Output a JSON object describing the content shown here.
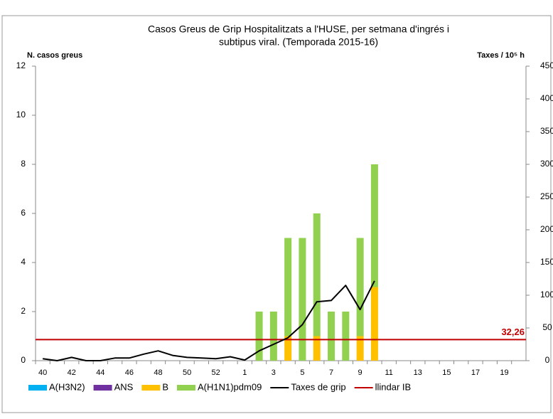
{
  "chart_data": {
    "type": "bar",
    "title": [
      "Casos  Greus de Grip Hospitalitzats a l'HUSE, per setmana  d'ingrés i",
      "subtipus viral. (Temporada 2015-16)"
    ],
    "y_label": "N. casos greus",
    "y2_label": "Taxes / 10⁵ h",
    "categories": [
      "40",
      null,
      "42",
      null,
      "44",
      null,
      "46",
      null,
      "48",
      null,
      "50",
      null,
      "52",
      null,
      "1",
      null,
      "3",
      null,
      "5",
      null,
      "7",
      null,
      "9",
      null,
      "11",
      null,
      "13",
      null,
      "15",
      null,
      "17",
      null,
      "19",
      null
    ],
    "series": [
      {
        "name": "A(H3N2)",
        "color": "#00b0f0",
        "values": [
          0,
          0,
          0,
          0,
          0,
          0,
          0,
          0,
          0,
          0,
          0,
          0,
          0,
          0,
          0,
          0,
          0,
          0,
          0,
          0,
          0,
          0,
          0,
          0,
          0,
          0,
          0,
          0,
          0,
          0,
          0,
          0,
          0,
          0
        ]
      },
      {
        "name": "ANS",
        "color": "#7030a0",
        "values": [
          0,
          0,
          0,
          0,
          0,
          0,
          0,
          0,
          0,
          0,
          0,
          0,
          0,
          0,
          0,
          0,
          0,
          0,
          0,
          0,
          0,
          0,
          0,
          0,
          0,
          0,
          0,
          0,
          0,
          0,
          0,
          0,
          0,
          0
        ]
      },
      {
        "name": "B",
        "color": "#ffc000",
        "values": [
          0,
          0,
          0,
          0,
          0,
          0,
          0,
          0,
          0,
          0,
          0,
          0,
          0,
          0,
          0,
          0,
          0,
          1,
          0,
          1,
          0,
          0,
          1,
          3,
          0,
          0,
          0,
          0,
          0,
          0,
          0,
          0,
          0,
          0
        ]
      },
      {
        "name": "A(H1N1)pdm09",
        "color": "#92d050",
        "values": [
          0,
          0,
          0,
          0,
          0,
          0,
          0,
          0,
          0,
          0,
          0,
          0,
          0,
          0,
          0,
          2,
          2,
          4,
          5,
          5,
          2,
          2,
          4,
          5,
          0,
          0,
          0,
          0,
          0,
          0,
          0,
          0,
          0,
          0
        ]
      },
      {
        "name": "Taxes de grip",
        "color": "#000000",
        "type": "line",
        "axis": "y2",
        "values": [
          3,
          0,
          5,
          0,
          0,
          4,
          4,
          10,
          15,
          8,
          5,
          4,
          3,
          6,
          1,
          15,
          25,
          35,
          55,
          90,
          92,
          115,
          78,
          122,
          null,
          null,
          null,
          null,
          null,
          null,
          null,
          null,
          null,
          null
        ]
      }
    ],
    "threshold": {
      "name": "llindar IB",
      "color": "#c00000",
      "axis": "y2",
      "value": 32.26,
      "value_label": "32,26"
    },
    "ylim": [
      0,
      12
    ],
    "yticks": [
      0,
      2,
      4,
      6,
      8,
      10,
      12
    ],
    "y2lim": [
      0,
      450
    ],
    "y2ticks": [
      0,
      50,
      100,
      150,
      200,
      250,
      300,
      350,
      400,
      450
    ],
    "grid": false,
    "stacked": true,
    "legend": "bottom"
  }
}
